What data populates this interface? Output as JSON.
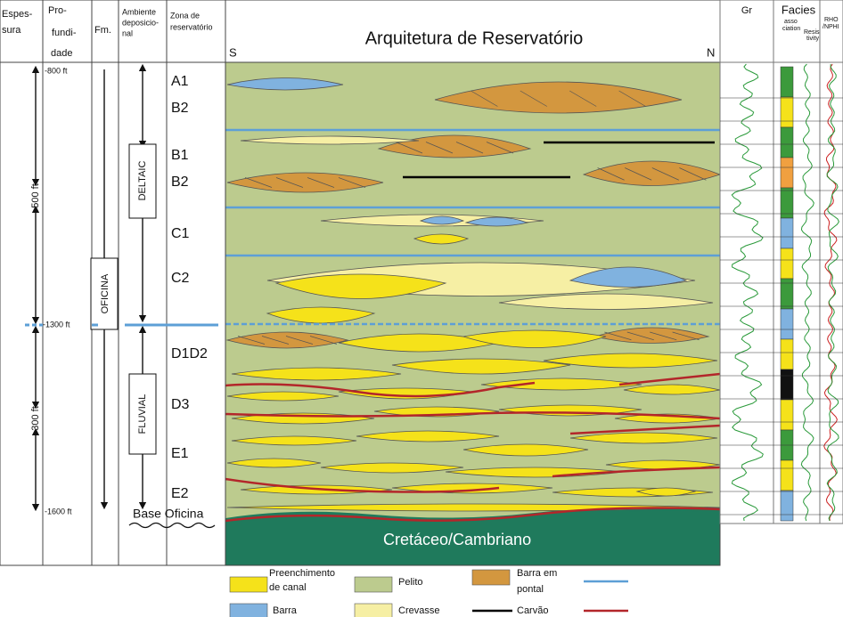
{
  "header": {
    "columns": [
      {
        "lines": [
          "Espes-",
          "sura"
        ]
      },
      {
        "lines": [
          "Pro-",
          "fundi-",
          "dade"
        ]
      },
      {
        "lines": [
          "Fm."
        ]
      },
      {
        "lines": [
          "Ambiente",
          "deposicio-",
          "nal"
        ]
      },
      {
        "lines": [
          "Zona de",
          "reservatório"
        ]
      }
    ],
    "title": "Arquitetura de Reservatório",
    "south": "S",
    "north": "N"
  },
  "left": {
    "thickness": [
      "500 ft",
      "300 ft"
    ],
    "depths": [
      "-800 ft",
      "-1300 ft",
      "-1600 ft"
    ],
    "formation": "OFICINA",
    "environments": [
      "DELTAIC",
      "FLUVIAL"
    ],
    "zones": [
      "A1",
      "B2",
      "B1",
      "B2",
      "C1",
      "C2",
      "D1D2",
      "D3",
      "E1",
      "E2"
    ],
    "base": "Base Oficina"
  },
  "basement": "Cretáceo/Cambriano",
  "logs": {
    "gr": "Gr",
    "facies": "Facies",
    "association": [
      "asso",
      "ciation"
    ],
    "resistivity": [
      "Resis",
      "tivity"
    ],
    "rho": [
      "RHO",
      "/NPHI"
    ]
  },
  "legend": [
    {
      "lines": [
        "Preenchimento",
        "de canal"
      ]
    },
    {
      "lines": [
        "Pelito"
      ]
    },
    {
      "lines": [
        "Barra em",
        "pontal"
      ]
    },
    {
      "lines": [
        "Barra"
      ]
    },
    {
      "lines": [
        "Crevasse"
      ]
    },
    {
      "lines": [
        "Carvão"
      ]
    }
  ]
}
